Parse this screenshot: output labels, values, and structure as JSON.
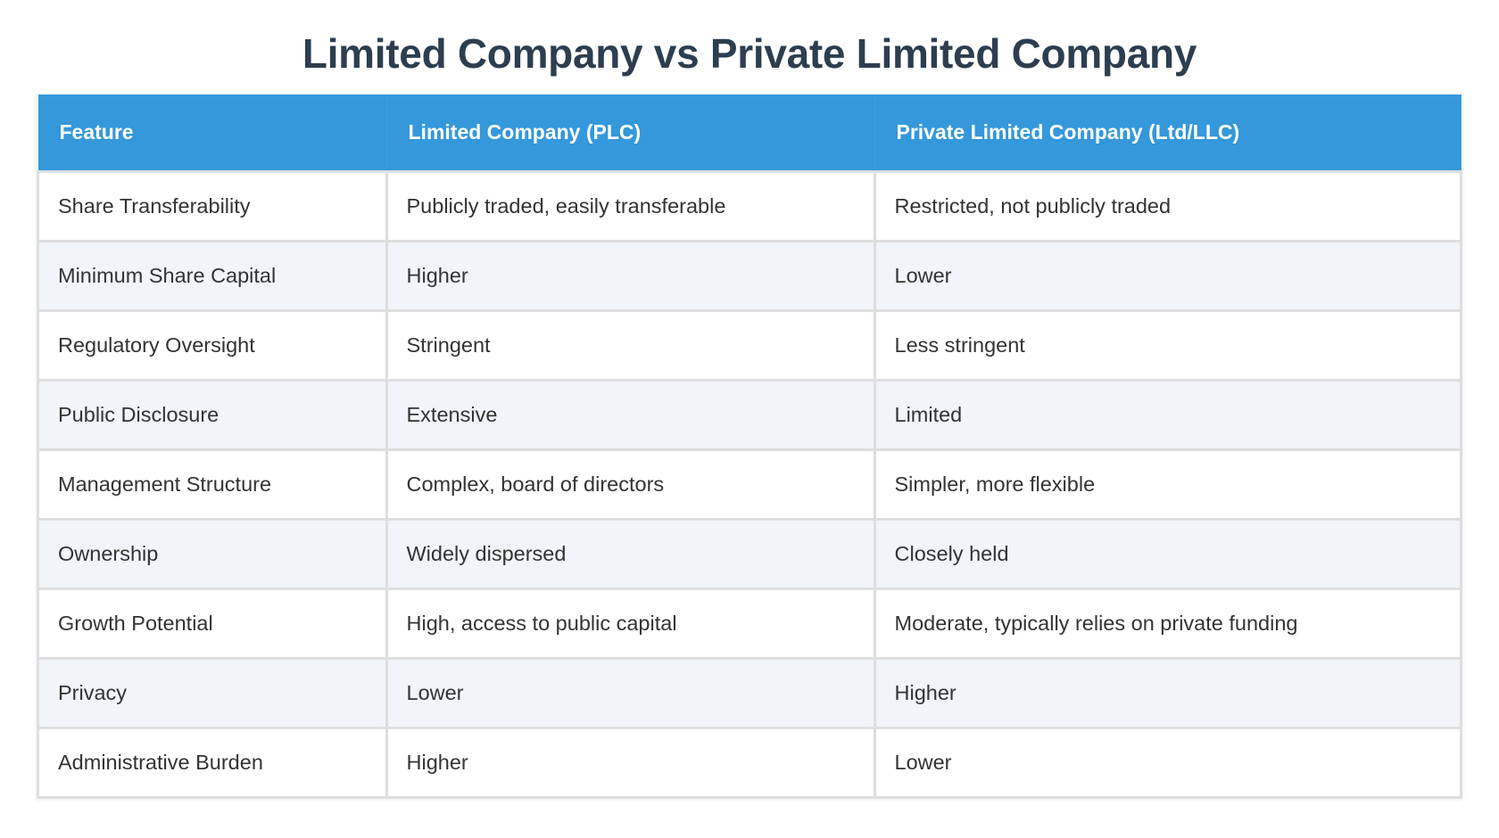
{
  "title": "Limited Company vs Private Limited Company",
  "colors": {
    "header_bg": "#3498db",
    "title": "#2c3e50",
    "alt_row": "#f1f4f8"
  },
  "table": {
    "headers": [
      "Feature",
      "Limited Company (PLC)",
      "Private Limited Company (Ltd/LLC)"
    ],
    "rows": [
      [
        "Share Transferability",
        "Publicly traded, easily transferable",
        "Restricted, not publicly traded"
      ],
      [
        "Minimum Share Capital",
        "Higher",
        "Lower"
      ],
      [
        "Regulatory Oversight",
        "Stringent",
        "Less stringent"
      ],
      [
        "Public Disclosure",
        "Extensive",
        "Limited"
      ],
      [
        "Management Structure",
        "Complex, board of directors",
        "Simpler, more flexible"
      ],
      [
        "Ownership",
        "Widely dispersed",
        "Closely held"
      ],
      [
        "Growth Potential",
        "High, access to public capital",
        "Moderate, typically relies on private funding"
      ],
      [
        "Privacy",
        "Lower",
        "Higher"
      ],
      [
        "Administrative Burden",
        "Higher",
        "Lower"
      ]
    ]
  }
}
